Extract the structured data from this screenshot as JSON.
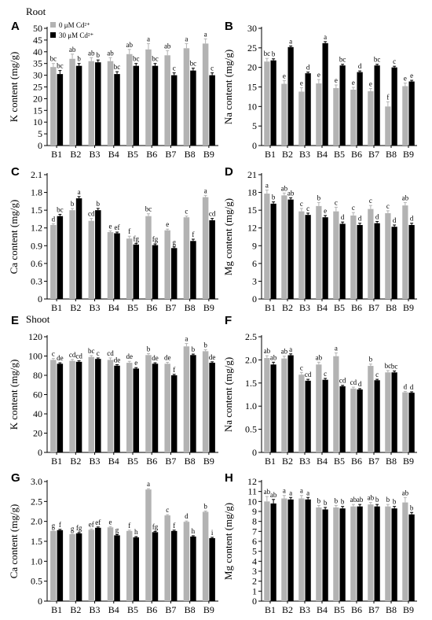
{
  "figure": {
    "sections": [
      "Root",
      "Shoot"
    ],
    "legend": [
      {
        "label": "0 μM Cd²⁺",
        "color": "#b3b3b3"
      },
      {
        "label": "30 μM Cd²⁺",
        "color": "#000000"
      }
    ]
  },
  "chart_data": [
    {
      "panel": "A",
      "type": "bar",
      "ylabel": "K content (mg/g)",
      "ylim": [
        0,
        50
      ],
      "yticks": [
        0,
        5,
        10,
        15,
        20,
        25,
        30,
        35,
        40,
        45,
        50
      ],
      "ytick_labels": [
        "0",
        "5",
        "10",
        "15",
        "20",
        "25",
        "30",
        "35",
        "40",
        "45",
        "50"
      ],
      "categories": [
        "B1",
        "B2",
        "B3",
        "B4",
        "B5",
        "B6",
        "B7",
        "B8",
        "B9"
      ],
      "series": [
        {
          "name": "0 μM Cd²⁺",
          "values": [
            33.5,
            37,
            36,
            36,
            39,
            41,
            38.5,
            41.5,
            43.5
          ],
          "errors": [
            1.5,
            2,
            1.5,
            1.5,
            2,
            2.5,
            2,
            2,
            2
          ],
          "labels": [
            "bc",
            "ab",
            "ab",
            "ab",
            "ab",
            "a",
            "ab",
            "a",
            "a"
          ]
        },
        {
          "name": "30 μM Cd²⁺",
          "values": [
            30.5,
            34,
            35.5,
            30.5,
            34,
            34,
            30,
            32,
            30
          ],
          "errors": [
            1.5,
            1,
            1,
            1,
            1,
            1,
            1,
            1,
            1
          ],
          "labels": [
            "bc",
            "b",
            "b",
            "bc",
            "bc",
            "bc",
            "c",
            "bc",
            "c"
          ]
        }
      ]
    },
    {
      "panel": "B",
      "type": "bar",
      "ylabel": "Na content (mg/g)",
      "ylim": [
        0,
        30
      ],
      "yticks": [
        0,
        5,
        10,
        15,
        20,
        25,
        30
      ],
      "ytick_labels": [
        "0",
        "5",
        "10",
        "15",
        "20",
        "25",
        "30"
      ],
      "categories": [
        "B1",
        "B2",
        "B3",
        "B4",
        "B5",
        "B6",
        "B7",
        "B8",
        "B9"
      ],
      "series": [
        {
          "name": "0 μM Cd²⁺",
          "values": [
            21.5,
            15.8,
            13.8,
            15.9,
            14.7,
            14.3,
            13.9,
            10,
            15.2
          ],
          "errors": [
            0.8,
            0.8,
            1,
            1,
            0.8,
            0.6,
            0.7,
            1.2,
            0.8
          ],
          "labels": [
            "bc",
            "e",
            "e",
            "e",
            "e",
            "e",
            "e",
            "f",
            "e"
          ]
        },
        {
          "name": "30 μM Cd²⁺",
          "values": [
            21.8,
            25.2,
            18.5,
            26.2,
            20.5,
            18.8,
            20.5,
            20,
            16.4
          ],
          "errors": [
            0.4,
            0.3,
            0.3,
            0.4,
            0.3,
            0.3,
            0.3,
            0.3,
            0.3
          ],
          "labels": [
            "b",
            "a",
            "d",
            "a",
            "bc",
            "d",
            "bc",
            "c",
            "e"
          ]
        }
      ]
    },
    {
      "panel": "C",
      "type": "bar",
      "ylabel": "Ca content (mg/g)",
      "ylim": [
        0,
        2.1
      ],
      "yticks": [
        0,
        0.3,
        0.6,
        0.9,
        1.2,
        1.5,
        1.8,
        2.1
      ],
      "ytick_labels": [
        "0",
        "0.3",
        "0.6",
        "0.9",
        "1.2",
        "1.5",
        "1.8",
        "2.1"
      ],
      "categories": [
        "B1",
        "B2",
        "B3",
        "B4",
        "B5",
        "B6",
        "B7",
        "B8",
        "B9"
      ],
      "series": [
        {
          "name": "0 μM Cd²⁺",
          "values": [
            1.25,
            1.5,
            1.32,
            1.13,
            1.02,
            1.4,
            1.16,
            1.38,
            1.72
          ],
          "errors": [
            0.02,
            0.03,
            0.04,
            0.02,
            0.04,
            0.04,
            0.02,
            0.02,
            0.03
          ],
          "labels": [
            "d",
            "b",
            "cd",
            "e",
            "f",
            "bc",
            "e",
            "c",
            "a"
          ]
        },
        {
          "name": "30 μM Cd²⁺",
          "values": [
            1.4,
            1.7,
            1.5,
            1.11,
            0.92,
            0.91,
            0.86,
            0.98,
            1.33
          ],
          "errors": [
            0.03,
            0.03,
            0.03,
            0.02,
            0.02,
            0.02,
            0.02,
            0.03,
            0.03
          ],
          "labels": [
            "bc",
            "a",
            "b",
            "ef",
            "fg",
            "fg",
            "g",
            "f",
            "cd"
          ]
        }
      ]
    },
    {
      "panel": "D",
      "type": "bar",
      "ylabel": "Mg content (mg/g)",
      "ylim": [
        0,
        21
      ],
      "yticks": [
        0,
        3,
        6,
        9,
        12,
        15,
        18,
        21
      ],
      "ytick_labels": [
        "0",
        "3",
        "6",
        "9",
        "12",
        "15",
        "18",
        "21"
      ],
      "categories": [
        "B1",
        "B2",
        "B3",
        "B4",
        "B5",
        "B6",
        "B7",
        "B8",
        "B9"
      ],
      "series": [
        {
          "name": "0 μM Cd²⁺",
          "values": [
            17.8,
            17.5,
            14.8,
            15.7,
            14.8,
            14.1,
            15.2,
            14.5,
            15.8
          ],
          "errors": [
            0.6,
            0.4,
            0.5,
            0.6,
            0.7,
            0.5,
            0.6,
            0.4,
            0.5
          ],
          "labels": [
            "a",
            "ab",
            "c",
            "b",
            "c",
            "c",
            "c",
            "c",
            "ab"
          ]
        },
        {
          "name": "30 μM Cd²⁺",
          "values": [
            16.1,
            16.8,
            14.2,
            13.8,
            12.7,
            12.5,
            12.8,
            12.2,
            12.5
          ],
          "errors": [
            0.3,
            0.3,
            0.3,
            0.3,
            0.3,
            0.3,
            0.3,
            0.3,
            0.3
          ],
          "labels": [
            "b",
            "ab",
            "c",
            "e",
            "d",
            "d",
            "d",
            "d",
            "d"
          ]
        }
      ]
    },
    {
      "panel": "E",
      "type": "bar",
      "ylabel": "K content (mg/g)",
      "ylim": [
        0,
        120
      ],
      "yticks": [
        0,
        20,
        40,
        60,
        80,
        100,
        120
      ],
      "ytick_labels": [
        "0",
        "20",
        "40",
        "60",
        "80",
        "100",
        "120"
      ],
      "categories": [
        "B1",
        "B2",
        "B3",
        "B4",
        "B5",
        "B6",
        "B7",
        "B8",
        "B9"
      ],
      "series": [
        {
          "name": "0 μM Cd²⁺",
          "values": [
            96,
            95,
            99,
            96,
            93,
            101,
            92,
            110,
            105
          ],
          "errors": [
            1.5,
            1.5,
            1.5,
            2,
            1.5,
            1.5,
            1.5,
            3,
            1.5
          ],
          "labels": [
            "c",
            "cd",
            "bc",
            "cd",
            "de",
            "b",
            "de",
            "a",
            "b"
          ]
        },
        {
          "name": "30 μM Cd²⁺",
          "values": [
            92,
            94,
            97,
            90,
            87,
            92,
            80,
            101,
            93
          ],
          "errors": [
            1,
            1,
            1,
            1,
            1,
            1,
            1,
            1,
            1
          ],
          "labels": [
            "de",
            "cd",
            "c",
            "de",
            "e",
            "de",
            "f",
            "b",
            "de"
          ]
        }
      ]
    },
    {
      "panel": "F",
      "type": "bar",
      "ylabel": "Na content (mg/g)",
      "ylim": [
        0,
        2.5
      ],
      "yticks": [
        0,
        0.5,
        1,
        1.5,
        2,
        2.5
      ],
      "ytick_labels": [
        "0",
        "0.5",
        "1.0",
        "1.5",
        "2.0",
        "2.5"
      ],
      "categories": [
        "B1",
        "B2",
        "B3",
        "B4",
        "B5",
        "B6",
        "B7",
        "B8",
        "B9"
      ],
      "series": [
        {
          "name": "0 μM Cd²⁺",
          "values": [
            2.04,
            2.03,
            1.68,
            1.9,
            2.08,
            1.38,
            1.87,
            1.73,
            1.3
          ],
          "errors": [
            0.05,
            0.05,
            0.05,
            0.05,
            0.07,
            0.03,
            0.04,
            0.04,
            0.02
          ],
          "labels": [
            "ab",
            "ab",
            "c",
            "ab",
            "a",
            "cd",
            "b",
            "bc",
            "d"
          ]
        },
        {
          "name": "30 μM Cd²⁺",
          "values": [
            1.9,
            2.1,
            1.55,
            1.57,
            1.43,
            1.36,
            1.56,
            1.73,
            1.29
          ],
          "errors": [
            0.05,
            0.03,
            0.03,
            0.03,
            0.02,
            0.02,
            0.02,
            0.03,
            0.02
          ],
          "labels": [
            "ab",
            "a",
            "cd",
            "c",
            "cd",
            "d",
            "c",
            "bc",
            "d"
          ]
        }
      ]
    },
    {
      "panel": "G",
      "type": "bar",
      "ylabel": "Ca content (mg/g)",
      "ylim": [
        0,
        3.0
      ],
      "yticks": [
        0,
        0.5,
        1,
        1.5,
        2,
        2.5,
        3
      ],
      "ytick_labels": [
        "0",
        "0.5",
        "1.0",
        "1.5",
        "2.0",
        "2.5",
        "3.0"
      ],
      "categories": [
        "B1",
        "B2",
        "B3",
        "B4",
        "B5",
        "B6",
        "B7",
        "B8",
        "B9"
      ],
      "series": [
        {
          "name": "0 μM Cd²⁺",
          "values": [
            1.76,
            1.68,
            1.79,
            1.85,
            1.76,
            2.8,
            2.15,
            1.99,
            2.24
          ],
          "errors": [
            0.02,
            0.02,
            0.02,
            0.02,
            0.02,
            0.02,
            0.02,
            0.02,
            0.02
          ],
          "labels": [
            "g",
            "g",
            "ef",
            "e",
            "f",
            "a",
            "c",
            "d",
            "b"
          ]
        },
        {
          "name": "30 μM Cd²⁺",
          "values": [
            1.78,
            1.7,
            1.84,
            1.65,
            1.6,
            1.73,
            1.76,
            1.62,
            1.58
          ],
          "errors": [
            0.02,
            0.02,
            0.02,
            0.02,
            0.02,
            0.02,
            0.02,
            0.02,
            0.02
          ],
          "labels": [
            "f",
            "fg",
            "ef",
            "g",
            "h",
            "fg",
            "f",
            "h",
            "i"
          ]
        }
      ]
    },
    {
      "panel": "H",
      "type": "bar",
      "ylabel": "Mg content (mg/g)",
      "ylim": [
        0,
        12
      ],
      "yticks": [
        0,
        1,
        2,
        3,
        4,
        5,
        6,
        7,
        8,
        9,
        10,
        11,
        12
      ],
      "ytick_labels": [
        "0",
        "1",
        "2",
        "3",
        "4",
        "5",
        "6",
        "7",
        "8",
        "9",
        "10",
        "11",
        "12"
      ],
      "categories": [
        "B1",
        "B2",
        "B3",
        "B4",
        "B5",
        "B6",
        "B7",
        "B8",
        "B9"
      ],
      "series": [
        {
          "name": "0 μM Cd²⁺",
          "values": [
            10,
            10.3,
            10.3,
            9.4,
            9.4,
            9.5,
            9.7,
            9.5,
            9.9
          ],
          "errors": [
            0.5,
            0.3,
            0.3,
            0.2,
            0.2,
            0.2,
            0.2,
            0.2,
            0.5
          ],
          "labels": [
            "ab",
            "a",
            "a",
            "b",
            "b",
            "ab",
            "ab",
            "b",
            "ab"
          ]
        },
        {
          "name": "30 μM Cd²⁺",
          "values": [
            9.8,
            10.2,
            10.2,
            9.2,
            9.3,
            9.5,
            9.5,
            9.3,
            8.7
          ],
          "errors": [
            0.4,
            0.2,
            0.2,
            0.2,
            0.2,
            0.2,
            0.2,
            0.2,
            0.2
          ],
          "labels": [
            "ab",
            "a",
            "a",
            "b",
            "b",
            "ab",
            "b",
            "b",
            "b"
          ]
        }
      ]
    }
  ]
}
